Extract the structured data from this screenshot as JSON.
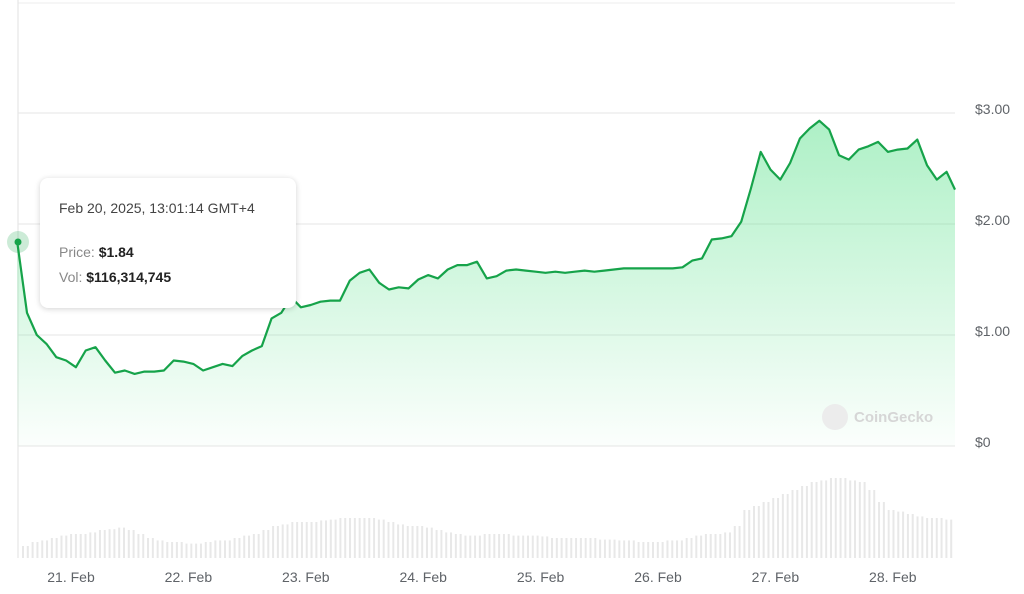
{
  "tooltip": {
    "date": "Feb 20, 2025, 13:01:14 GMT+4",
    "price_label": "Price:",
    "price_value": "$1.84",
    "vol_label": "Vol:",
    "vol_value": "$116,314,745"
  },
  "watermark": "CoinGecko",
  "colors": {
    "line": "#16a34a",
    "fill": "#4ade80",
    "grid": "#e6e6e6",
    "volume": "#e8e8e8"
  },
  "chart_data": {
    "type": "area",
    "title": "",
    "xlabel": "",
    "ylabel": "",
    "x_tick_labels": [
      "21. Feb",
      "22. Feb",
      "23. Feb",
      "24. Feb",
      "25. Feb",
      "26. Feb",
      "27. Feb",
      "28. Feb"
    ],
    "y_tick_labels": [
      "$0",
      "$1.00",
      "$2.00",
      "$3.00"
    ],
    "y_ticks": [
      0,
      1,
      2,
      3
    ],
    "ylim": [
      0,
      3.0
    ],
    "grid": true,
    "legend": "none",
    "series": [
      {
        "start": "2025-02-20T13:00",
        "interval_hours": 2,
        "values": [
          1.84,
          1.2,
          1.0,
          0.92,
          0.8,
          0.77,
          0.71,
          0.86,
          0.89,
          0.77,
          0.66,
          0.68,
          0.65,
          0.67,
          0.67,
          0.68,
          0.77,
          0.76,
          0.74,
          0.68,
          0.71,
          0.74,
          0.72,
          0.81,
          0.86,
          0.9,
          1.15,
          1.2,
          1.34,
          1.25,
          1.27,
          1.3,
          1.31,
          1.31,
          1.49,
          1.56,
          1.59,
          1.47,
          1.41,
          1.43,
          1.42,
          1.5,
          1.54,
          1.51,
          1.59,
          1.63,
          1.63,
          1.66,
          1.51,
          1.53,
          1.58,
          1.59,
          1.58,
          1.57,
          1.56,
          1.57,
          1.56,
          1.57,
          1.58,
          1.57,
          1.58,
          1.59,
          1.6,
          1.6,
          1.6,
          1.6,
          1.6,
          1.6,
          1.61,
          1.67,
          1.69,
          1.86,
          1.87,
          1.89,
          2.02,
          2.32,
          2.65,
          2.49,
          2.4,
          2.55,
          2.77,
          2.86,
          2.93,
          2.85,
          2.62,
          2.58,
          2.67,
          2.7,
          2.74,
          2.65,
          2.67,
          2.68,
          2.76,
          2.53,
          2.4,
          2.47,
          2.31
        ]
      }
    ],
    "volume_relative": [
      0.15,
      0.2,
      0.22,
      0.25,
      0.28,
      0.3,
      0.3,
      0.32,
      0.35,
      0.36,
      0.38,
      0.35,
      0.3,
      0.25,
      0.22,
      0.2,
      0.2,
      0.18,
      0.18,
      0.2,
      0.22,
      0.22,
      0.25,
      0.28,
      0.3,
      0.35,
      0.4,
      0.42,
      0.45,
      0.45,
      0.45,
      0.47,
      0.48,
      0.5,
      0.5,
      0.5,
      0.5,
      0.48,
      0.45,
      0.42,
      0.4,
      0.4,
      0.38,
      0.35,
      0.32,
      0.3,
      0.28,
      0.28,
      0.3,
      0.3,
      0.3,
      0.28,
      0.28,
      0.28,
      0.27,
      0.25,
      0.25,
      0.25,
      0.25,
      0.25,
      0.23,
      0.23,
      0.22,
      0.22,
      0.2,
      0.2,
      0.2,
      0.22,
      0.22,
      0.25,
      0.28,
      0.3,
      0.3,
      0.32,
      0.4,
      0.6,
      0.65,
      0.7,
      0.75,
      0.8,
      0.85,
      0.9,
      0.95,
      0.97,
      1.0,
      1.0,
      0.97,
      0.95,
      0.85,
      0.7,
      0.6,
      0.58,
      0.55,
      0.52,
      0.5,
      0.5,
      0.48
    ]
  }
}
